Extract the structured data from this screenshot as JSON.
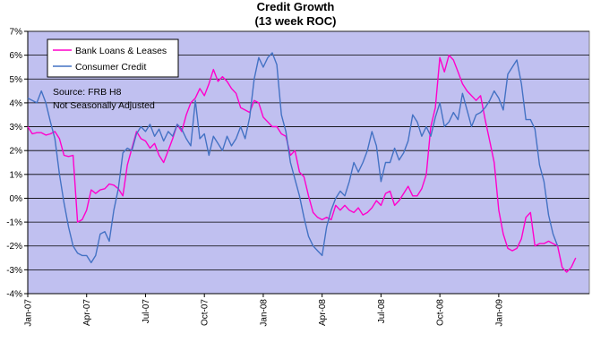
{
  "chart_data": {
    "type": "line",
    "title": "Credit Growth",
    "subtitle": "(13 week ROC)",
    "xlabel": "",
    "ylabel": "",
    "ylim": [
      -4,
      7
    ],
    "y_ticks": [
      -4,
      -3,
      -2,
      -1,
      0,
      1,
      2,
      3,
      4,
      5,
      6,
      7
    ],
    "y_tick_labels": [
      "-4%",
      "-3%",
      "-2%",
      "-1%",
      "0%",
      "1%",
      "2%",
      "3%",
      "4%",
      "5%",
      "6%",
      "7%"
    ],
    "x_range": [
      "2007-01-03",
      "2009-05-20"
    ],
    "x_ticks": [
      "2007-01-03",
      "2007-04-04",
      "2007-07-04",
      "2007-10-03",
      "2008-01-02",
      "2008-04-02",
      "2008-07-02",
      "2008-10-01",
      "2008-12-31"
    ],
    "x_tick_labels": [
      "Jan-07",
      "Apr-07",
      "Jul-07",
      "Oct-07",
      "Jan-08",
      "Apr-08",
      "Jul-08",
      "Oct-08",
      "Jan-09"
    ],
    "grid": "horizontal",
    "plot_background": "#C0C0F0",
    "legend_placement": "top-left",
    "annotations": [
      "Source: FRB H8",
      "Not Seasonally Adjusted"
    ],
    "series": [
      {
        "name": "Bank Loans & Leases",
        "color": "#FF00CC",
        "points": [
          [
            "2007-01-03",
            3.0
          ],
          [
            "2007-01-10",
            2.7
          ],
          [
            "2007-01-17",
            2.75
          ],
          [
            "2007-01-24",
            2.75
          ],
          [
            "2007-01-31",
            2.65
          ],
          [
            "2007-02-07",
            2.7
          ],
          [
            "2007-02-14",
            2.8
          ],
          [
            "2007-02-21",
            2.5
          ],
          [
            "2007-02-28",
            1.8
          ],
          [
            "2007-03-07",
            1.75
          ],
          [
            "2007-03-14",
            1.8
          ],
          [
            "2007-03-21",
            -1.0
          ],
          [
            "2007-03-28",
            -0.9
          ],
          [
            "2007-04-04",
            -0.5
          ],
          [
            "2007-04-11",
            0.35
          ],
          [
            "2007-04-18",
            0.2
          ],
          [
            "2007-04-25",
            0.35
          ],
          [
            "2007-05-02",
            0.4
          ],
          [
            "2007-05-09",
            0.6
          ],
          [
            "2007-05-16",
            0.55
          ],
          [
            "2007-05-23",
            0.4
          ],
          [
            "2007-05-30",
            0.1
          ],
          [
            "2007-06-06",
            1.4
          ],
          [
            "2007-06-13",
            2.1
          ],
          [
            "2007-06-20",
            2.8
          ],
          [
            "2007-06-27",
            2.5
          ],
          [
            "2007-07-04",
            2.4
          ],
          [
            "2007-07-11",
            2.1
          ],
          [
            "2007-07-18",
            2.3
          ],
          [
            "2007-07-25",
            1.8
          ],
          [
            "2007-08-01",
            1.5
          ],
          [
            "2007-08-08",
            2.0
          ],
          [
            "2007-08-15",
            2.5
          ],
          [
            "2007-08-22",
            3.1
          ],
          [
            "2007-08-29",
            2.8
          ],
          [
            "2007-09-05",
            3.5
          ],
          [
            "2007-09-12",
            4.0
          ],
          [
            "2007-09-19",
            4.2
          ],
          [
            "2007-09-26",
            4.6
          ],
          [
            "2007-10-03",
            4.3
          ],
          [
            "2007-10-10",
            4.8
          ],
          [
            "2007-10-17",
            5.4
          ],
          [
            "2007-10-24",
            4.9
          ],
          [
            "2007-10-31",
            5.1
          ],
          [
            "2007-11-07",
            4.9
          ],
          [
            "2007-11-14",
            4.6
          ],
          [
            "2007-11-21",
            4.4
          ],
          [
            "2007-11-28",
            3.8
          ],
          [
            "2007-12-05",
            3.7
          ],
          [
            "2007-12-12",
            3.6
          ],
          [
            "2007-12-19",
            4.1
          ],
          [
            "2007-12-26",
            4.0
          ],
          [
            "2008-01-02",
            3.4
          ],
          [
            "2008-01-09",
            3.2
          ],
          [
            "2008-01-16",
            3.0
          ],
          [
            "2008-01-23",
            3.0
          ],
          [
            "2008-01-30",
            2.7
          ],
          [
            "2008-02-06",
            2.6
          ],
          [
            "2008-02-13",
            1.8
          ],
          [
            "2008-02-20",
            2.0
          ],
          [
            "2008-02-27",
            1.1
          ],
          [
            "2008-03-05",
            0.9
          ],
          [
            "2008-03-12",
            0.1
          ],
          [
            "2008-03-19",
            -0.6
          ],
          [
            "2008-03-26",
            -0.8
          ],
          [
            "2008-04-02",
            -0.9
          ],
          [
            "2008-04-09",
            -0.8
          ],
          [
            "2008-04-16",
            -0.9
          ],
          [
            "2008-04-23",
            -0.3
          ],
          [
            "2008-04-30",
            -0.5
          ],
          [
            "2008-05-07",
            -0.3
          ],
          [
            "2008-05-14",
            -0.5
          ],
          [
            "2008-05-21",
            -0.6
          ],
          [
            "2008-05-28",
            -0.4
          ],
          [
            "2008-06-04",
            -0.7
          ],
          [
            "2008-06-11",
            -0.6
          ],
          [
            "2008-06-18",
            -0.4
          ],
          [
            "2008-06-25",
            -0.1
          ],
          [
            "2008-07-02",
            -0.3
          ],
          [
            "2008-07-09",
            0.2
          ],
          [
            "2008-07-16",
            0.3
          ],
          [
            "2008-07-23",
            -0.3
          ],
          [
            "2008-07-30",
            -0.1
          ],
          [
            "2008-08-06",
            0.2
          ],
          [
            "2008-08-13",
            0.5
          ],
          [
            "2008-08-20",
            0.1
          ],
          [
            "2008-08-27",
            0.1
          ],
          [
            "2008-09-03",
            0.4
          ],
          [
            "2008-09-10",
            1.0
          ],
          [
            "2008-09-17",
            3.0
          ],
          [
            "2008-09-24",
            3.8
          ],
          [
            "2008-10-01",
            5.9
          ],
          [
            "2008-10-08",
            5.3
          ],
          [
            "2008-10-15",
            6.0
          ],
          [
            "2008-10-22",
            5.8
          ],
          [
            "2008-10-29",
            5.3
          ],
          [
            "2008-11-05",
            4.8
          ],
          [
            "2008-11-12",
            4.5
          ],
          [
            "2008-11-19",
            4.3
          ],
          [
            "2008-11-26",
            4.1
          ],
          [
            "2008-12-03",
            4.3
          ],
          [
            "2008-12-10",
            3.3
          ],
          [
            "2008-12-17",
            2.4
          ],
          [
            "2008-12-24",
            1.5
          ],
          [
            "2008-12-31",
            -0.5
          ],
          [
            "2009-01-07",
            -1.5
          ],
          [
            "2009-01-14",
            -2.1
          ],
          [
            "2009-01-21",
            -2.2
          ],
          [
            "2009-01-28",
            -2.1
          ],
          [
            "2009-02-04",
            -1.7
          ],
          [
            "2009-02-11",
            -0.8
          ],
          [
            "2009-02-18",
            -0.6
          ],
          [
            "2009-02-25",
            -2.0
          ],
          [
            "2009-03-04",
            -1.9
          ],
          [
            "2009-03-11",
            -1.9
          ],
          [
            "2009-03-18",
            -1.8
          ],
          [
            "2009-03-25",
            -1.9
          ],
          [
            "2009-04-01",
            -2.0
          ],
          [
            "2009-04-08",
            -2.9
          ],
          [
            "2009-04-15",
            -3.1
          ],
          [
            "2009-04-22",
            -2.9
          ],
          [
            "2009-04-29",
            -2.5
          ]
        ]
      },
      {
        "name": "Consumer Credit",
        "color": "#4472C4",
        "points": [
          [
            "2007-01-03",
            4.2
          ],
          [
            "2007-01-10",
            4.1
          ],
          [
            "2007-01-17",
            4.0
          ],
          [
            "2007-01-24",
            4.5
          ],
          [
            "2007-01-31",
            4.0
          ],
          [
            "2007-02-07",
            3.2
          ],
          [
            "2007-02-14",
            2.5
          ],
          [
            "2007-02-21",
            1.0
          ],
          [
            "2007-02-28",
            -0.2
          ],
          [
            "2007-03-07",
            -1.2
          ],
          [
            "2007-03-14",
            -2.0
          ],
          [
            "2007-03-21",
            -2.3
          ],
          [
            "2007-03-28",
            -2.4
          ],
          [
            "2007-04-04",
            -2.4
          ],
          [
            "2007-04-11",
            -2.7
          ],
          [
            "2007-04-18",
            -2.4
          ],
          [
            "2007-04-25",
            -1.5
          ],
          [
            "2007-05-02",
            -1.4
          ],
          [
            "2007-05-09",
            -1.8
          ],
          [
            "2007-05-16",
            -0.5
          ],
          [
            "2007-05-23",
            0.4
          ],
          [
            "2007-05-30",
            1.9
          ],
          [
            "2007-06-06",
            2.1
          ],
          [
            "2007-06-13",
            2.0
          ],
          [
            "2007-06-20",
            2.7
          ],
          [
            "2007-06-27",
            3.0
          ],
          [
            "2007-07-04",
            2.8
          ],
          [
            "2007-07-11",
            3.1
          ],
          [
            "2007-07-18",
            2.6
          ],
          [
            "2007-07-25",
            2.9
          ],
          [
            "2007-08-01",
            2.4
          ],
          [
            "2007-08-08",
            2.8
          ],
          [
            "2007-08-15",
            2.6
          ],
          [
            "2007-08-22",
            3.1
          ],
          [
            "2007-08-29",
            2.9
          ],
          [
            "2007-09-05",
            2.5
          ],
          [
            "2007-09-12",
            2.2
          ],
          [
            "2007-09-19",
            4.1
          ],
          [
            "2007-09-26",
            2.5
          ],
          [
            "2007-10-03",
            2.7
          ],
          [
            "2007-10-10",
            1.8
          ],
          [
            "2007-10-17",
            2.6
          ],
          [
            "2007-10-24",
            2.3
          ],
          [
            "2007-10-31",
            2.0
          ],
          [
            "2007-11-07",
            2.6
          ],
          [
            "2007-11-14",
            2.2
          ],
          [
            "2007-11-21",
            2.5
          ],
          [
            "2007-11-28",
            3.0
          ],
          [
            "2007-12-05",
            2.5
          ],
          [
            "2007-12-12",
            3.4
          ],
          [
            "2007-12-19",
            5.0
          ],
          [
            "2007-12-26",
            5.9
          ],
          [
            "2008-01-02",
            5.5
          ],
          [
            "2008-01-09",
            5.9
          ],
          [
            "2008-01-16",
            6.1
          ],
          [
            "2008-01-23",
            5.6
          ],
          [
            "2008-01-30",
            3.5
          ],
          [
            "2008-02-06",
            2.8
          ],
          [
            "2008-02-13",
            1.5
          ],
          [
            "2008-02-20",
            0.8
          ],
          [
            "2008-02-27",
            0.1
          ],
          [
            "2008-03-05",
            -0.8
          ],
          [
            "2008-03-12",
            -1.6
          ],
          [
            "2008-03-19",
            -2.0
          ],
          [
            "2008-03-26",
            -2.2
          ],
          [
            "2008-04-02",
            -2.4
          ],
          [
            "2008-04-09",
            -1.2
          ],
          [
            "2008-04-16",
            -0.5
          ],
          [
            "2008-04-23",
            0.0
          ],
          [
            "2008-04-30",
            0.3
          ],
          [
            "2008-05-07",
            0.1
          ],
          [
            "2008-05-14",
            0.7
          ],
          [
            "2008-05-21",
            1.5
          ],
          [
            "2008-05-28",
            1.1
          ],
          [
            "2008-06-04",
            1.5
          ],
          [
            "2008-06-11",
            2.0
          ],
          [
            "2008-06-18",
            2.8
          ],
          [
            "2008-06-25",
            2.2
          ],
          [
            "2008-07-02",
            0.7
          ],
          [
            "2008-07-09",
            1.5
          ],
          [
            "2008-07-16",
            1.5
          ],
          [
            "2008-07-23",
            2.1
          ],
          [
            "2008-07-30",
            1.6
          ],
          [
            "2008-08-06",
            1.9
          ],
          [
            "2008-08-13",
            2.4
          ],
          [
            "2008-08-20",
            3.5
          ],
          [
            "2008-08-27",
            3.2
          ],
          [
            "2008-09-03",
            2.6
          ],
          [
            "2008-09-10",
            3.0
          ],
          [
            "2008-09-17",
            2.6
          ],
          [
            "2008-09-24",
            3.4
          ],
          [
            "2008-10-01",
            4.0
          ],
          [
            "2008-10-08",
            3.0
          ],
          [
            "2008-10-15",
            3.2
          ],
          [
            "2008-10-22",
            3.6
          ],
          [
            "2008-10-29",
            3.3
          ],
          [
            "2008-11-05",
            4.4
          ],
          [
            "2008-11-12",
            3.7
          ],
          [
            "2008-11-19",
            3.0
          ],
          [
            "2008-11-26",
            3.5
          ],
          [
            "2008-12-03",
            3.6
          ],
          [
            "2008-12-10",
            3.8
          ],
          [
            "2008-12-17",
            4.1
          ],
          [
            "2008-12-24",
            4.5
          ],
          [
            "2008-12-31",
            4.2
          ],
          [
            "2009-01-07",
            3.7
          ],
          [
            "2009-01-14",
            5.2
          ],
          [
            "2009-01-21",
            5.5
          ],
          [
            "2009-01-28",
            5.8
          ],
          [
            "2009-02-04",
            4.8
          ],
          [
            "2009-02-11",
            3.3
          ],
          [
            "2009-02-18",
            3.3
          ],
          [
            "2009-02-25",
            2.9
          ],
          [
            "2009-03-04",
            1.4
          ],
          [
            "2009-03-11",
            0.7
          ],
          [
            "2009-03-18",
            -0.7
          ],
          [
            "2009-03-25",
            -1.5
          ],
          [
            "2009-04-01",
            -2.0
          ]
        ]
      }
    ]
  }
}
